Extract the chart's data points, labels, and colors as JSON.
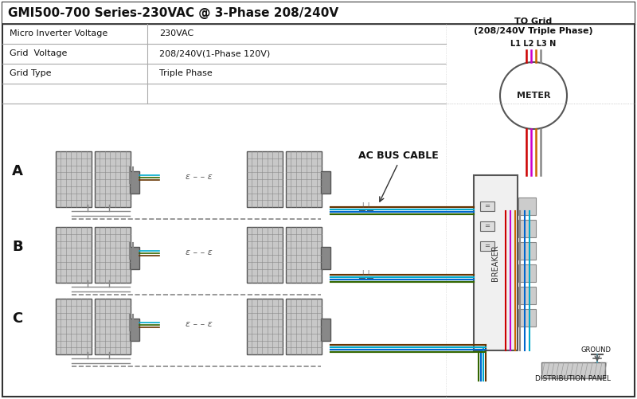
{
  "title": "GMI500-700 Series-230VAC @ 3-Phase 208/240V",
  "table_rows": [
    [
      "Micro Inverter Voltage",
      "230VAC"
    ],
    [
      "Grid  Voltage",
      "208/240V(1-Phase 120V)"
    ],
    [
      "Grid Type",
      "Triple Phase"
    ]
  ],
  "label_A": "A",
  "label_B": "B",
  "label_C": "C",
  "ac_bus_label": "AC BUS CABLE",
  "to_grid_label": "TO Grid\n(208/240V Triple Phase)",
  "l1l2l3n_label": "L1 L2 L3 N",
  "meter_label": "METER",
  "breaker_label": "BREAKER",
  "ground_label": "GROUND",
  "dist_panel_label": "DISTRIBUTION PANEL",
  "bg_color": "#ffffff",
  "border_color": "#000000",
  "wire_colors": {
    "red": "#cc0000",
    "magenta": "#cc00cc",
    "orange": "#cc6600",
    "neutral": "#888888",
    "blue": "#0066cc",
    "cyan": "#00aacc",
    "green": "#336600",
    "brown": "#663300"
  },
  "panel_color": "#aaaaaa",
  "solar_panel_color": "#888888",
  "solar_panel_inner": "#bbbbbb"
}
